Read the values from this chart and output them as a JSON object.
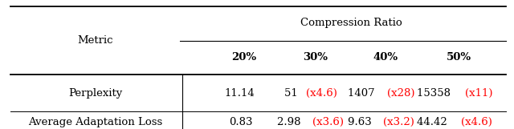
{
  "title": "Compression Ratio",
  "metric_label": "Metric",
  "col_headers": [
    "20%",
    "30%",
    "40%",
    "50%"
  ],
  "rows": [
    {
      "label": "Perplexity",
      "values": [
        [
          {
            "text": "11.14",
            "color": "black"
          }
        ],
        [
          {
            "text": "51 ",
            "color": "black"
          },
          {
            "text": "(x4.6)",
            "color": "red"
          }
        ],
        [
          {
            "text": "1407 ",
            "color": "black"
          },
          {
            "text": "(x28)",
            "color": "red"
          }
        ],
        [
          {
            "text": "15358 ",
            "color": "black"
          },
          {
            "text": "(x11)",
            "color": "red"
          }
        ]
      ]
    },
    {
      "label": "Average Adaptation Loss",
      "values": [
        [
          {
            "text": "0.83",
            "color": "black"
          }
        ],
        [
          {
            "text": "2.98 ",
            "color": "black"
          },
          {
            "text": "(x3.6)",
            "color": "red"
          }
        ],
        [
          {
            "text": "9.63 ",
            "color": "black"
          },
          {
            "text": "(x3.2)",
            "color": "red"
          }
        ],
        [
          {
            "text": "44.42 ",
            "color": "black"
          },
          {
            "text": "(x4.6)",
            "color": "red"
          }
        ]
      ]
    }
  ],
  "bg_color": "#ffffff",
  "font_size": 9.5,
  "header_font_size": 9.5
}
